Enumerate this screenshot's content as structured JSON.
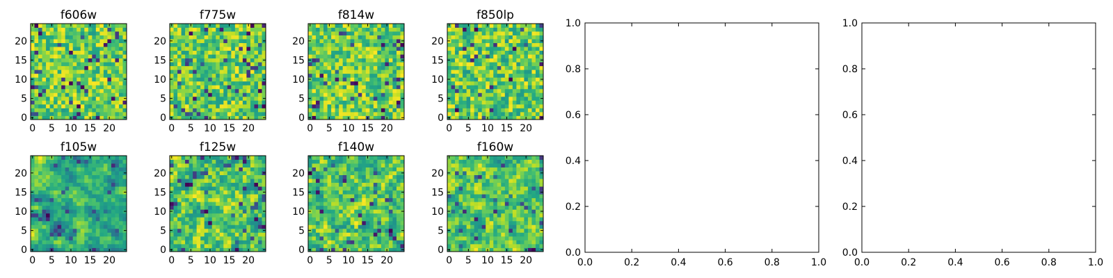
{
  "chart_data": {
    "type": "heatmap",
    "colormap": "viridis",
    "image_panels": [
      {
        "title": "f606w",
        "grid_size": 25,
        "seed": 11,
        "smooth": 0
      },
      {
        "title": "f775w",
        "grid_size": 25,
        "seed": 23,
        "smooth": 0
      },
      {
        "title": "f814w",
        "grid_size": 25,
        "seed": 37,
        "smooth": 0
      },
      {
        "title": "f850lp",
        "grid_size": 25,
        "seed": 41,
        "smooth": 0
      },
      {
        "title": "f105w",
        "grid_size": 25,
        "seed": 53,
        "smooth": 2
      },
      {
        "title": "f125w",
        "grid_size": 25,
        "seed": 67,
        "smooth": 1
      },
      {
        "title": "f140w",
        "grid_size": 25,
        "seed": 79,
        "smooth": 1
      },
      {
        "title": "f160w",
        "grid_size": 25,
        "seed": 83,
        "smooth": 1
      }
    ],
    "image_ticks": {
      "x": [
        "0",
        "5",
        "10",
        "15",
        "20"
      ],
      "y": [
        "0",
        "5",
        "10",
        "15",
        "20"
      ],
      "x_values": [
        0,
        5,
        10,
        15,
        20
      ],
      "y_values": [
        0,
        5,
        10,
        15,
        20
      ]
    },
    "empty_axes": [
      {
        "xlim": [
          0,
          1
        ],
        "ylim": [
          0,
          1
        ]
      },
      {
        "xlim": [
          0,
          1
        ],
        "ylim": [
          0,
          1
        ]
      }
    ],
    "empty_ticks": {
      "x": [
        "0.0",
        "0.2",
        "0.4",
        "0.6",
        "0.8",
        "1.0"
      ],
      "y": [
        "0.0",
        "0.2",
        "0.4",
        "0.6",
        "0.8",
        "1.0"
      ],
      "values": [
        0,
        0.2,
        0.4,
        0.6,
        0.8,
        1.0
      ]
    }
  }
}
